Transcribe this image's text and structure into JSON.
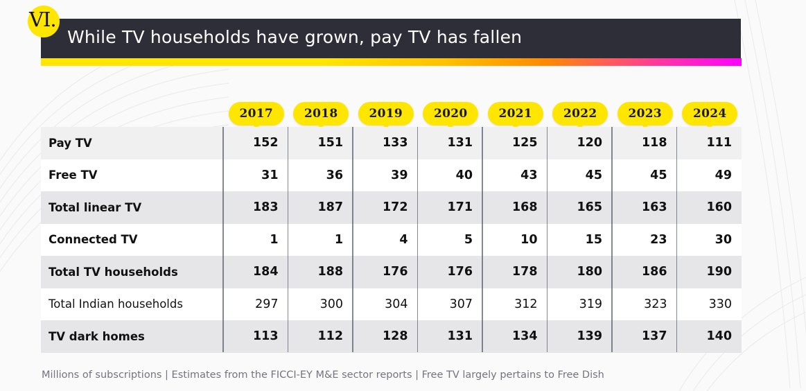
{
  "section": {
    "number": "VI."
  },
  "header": {
    "title": "While TV households have grown, pay TV has fallen"
  },
  "colors": {
    "title_bar": "#2e2e38",
    "accent_yellow": "#ffe600",
    "gradient_end": "#ff00ff"
  },
  "chart_data": {
    "type": "table",
    "title": "While TV households have grown, pay TV has fallen",
    "columns": [
      "2017",
      "2018",
      "2019",
      "2020",
      "2021",
      "2022",
      "2023",
      "2024"
    ],
    "rows": [
      {
        "label": "Pay TV",
        "values": [
          "152",
          "151",
          "133",
          "131",
          "125",
          "120",
          "118",
          "111"
        ]
      },
      {
        "label": "Free TV",
        "values": [
          "31",
          "36",
          "39",
          "40",
          "43",
          "45",
          "45",
          "49"
        ]
      },
      {
        "label": "Total linear TV",
        "values": [
          "183",
          "187",
          "172",
          "171",
          "168",
          "165",
          "163",
          "160"
        ]
      },
      {
        "label": "Connected TV",
        "values": [
          "1",
          "1",
          "4",
          "5",
          "10",
          "15",
          "23",
          "30"
        ]
      },
      {
        "label": "Total TV households",
        "values": [
          "184",
          "188",
          "176",
          "176",
          "178",
          "180",
          "186",
          "190"
        ]
      },
      {
        "label": "Total Indian households",
        "values": [
          "297",
          "300",
          "304",
          "307",
          "312",
          "319",
          "323",
          "330"
        ]
      },
      {
        "label": "TV dark homes",
        "values": [
          "113",
          "112",
          "128",
          "131",
          "134",
          "139",
          "137",
          "140"
        ]
      }
    ],
    "unit": "Millions of subscriptions"
  },
  "footnote": "Millions of subscriptions | Estimates from the FICCI-EY M&E sector reports | Free TV largely pertains to Free Dish"
}
